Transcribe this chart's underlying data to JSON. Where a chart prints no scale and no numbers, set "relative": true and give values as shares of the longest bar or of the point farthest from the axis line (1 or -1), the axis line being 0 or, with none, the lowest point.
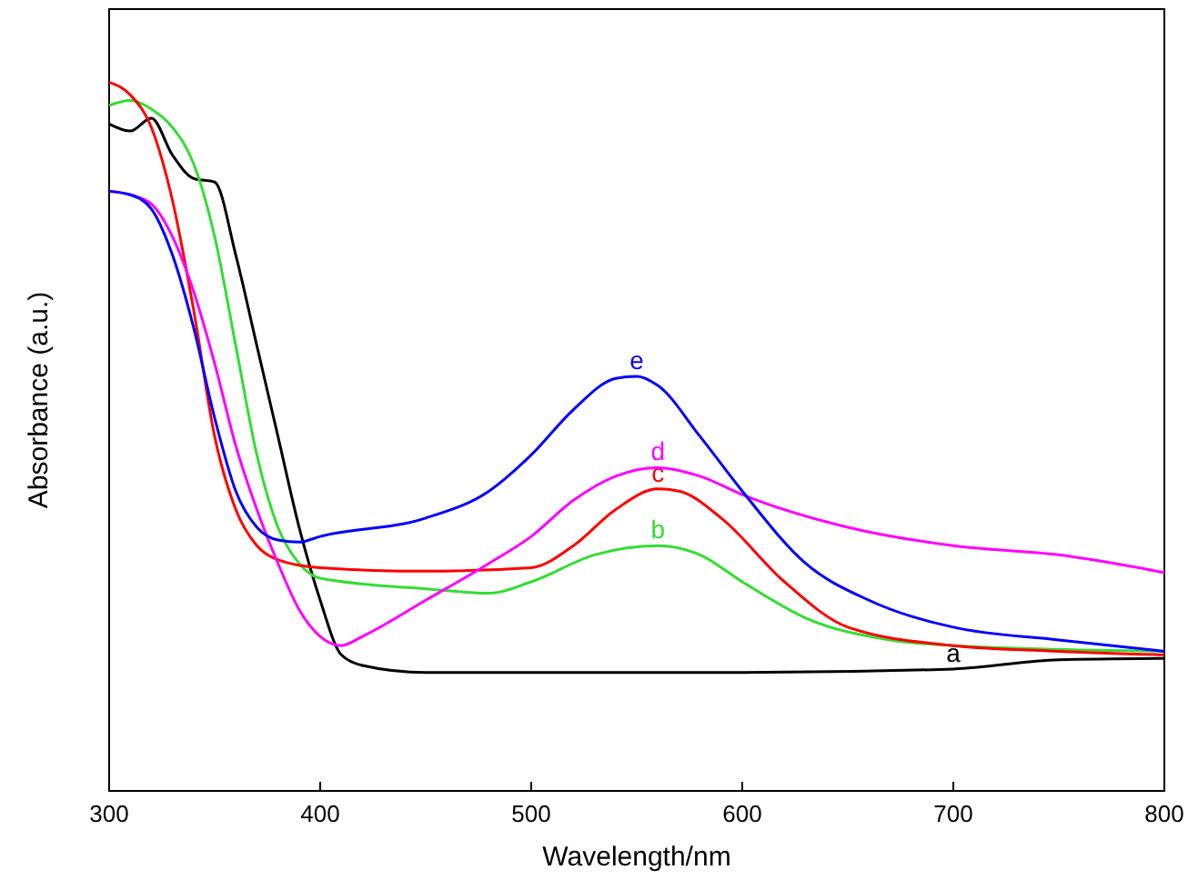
{
  "chart_data": {
    "type": "line",
    "relative": true,
    "xlabel": "Wavelength/nm",
    "ylabel": "Absorbance (a.u.)",
    "xlim": [
      300,
      800
    ],
    "xticks": [
      300,
      400,
      500,
      600,
      700,
      800
    ],
    "grid": false,
    "marker": "none",
    "line_style": "solid",
    "series": [
      {
        "name": "a",
        "color": "#000000",
        "x": [
          300,
          310,
          320,
          330,
          340,
          350,
          360,
          370,
          380,
          390,
          400,
          410,
          420,
          450,
          500,
          600,
          700,
          750,
          800
        ],
        "values": [
          0.941,
          0.931,
          0.949,
          0.897,
          0.864,
          0.859,
          0.756,
          0.628,
          0.5,
          0.372,
          0.269,
          0.192,
          0.177,
          0.167,
          0.167,
          0.167,
          0.172,
          0.185,
          0.187
        ]
      },
      {
        "name": "b",
        "color": "#33dd33",
        "x": [
          300,
          310,
          320,
          330,
          340,
          350,
          360,
          370,
          380,
          390,
          400,
          450,
          480,
          500,
          530,
          560,
          580,
          600,
          630,
          670,
          700,
          800
        ],
        "values": [
          0.967,
          0.974,
          0.962,
          0.936,
          0.885,
          0.782,
          0.628,
          0.474,
          0.372,
          0.321,
          0.3,
          0.285,
          0.279,
          0.295,
          0.333,
          0.346,
          0.333,
          0.295,
          0.244,
          0.213,
          0.205,
          0.197
        ]
      },
      {
        "name": "c",
        "color": "#ff0000",
        "x": [
          300,
          310,
          320,
          330,
          340,
          350,
          360,
          370,
          380,
          400,
          450,
          500,
          520,
          540,
          560,
          570,
          590,
          620,
          650,
          700,
          750,
          800
        ],
        "values": [
          1.0,
          0.982,
          0.936,
          0.833,
          0.679,
          0.5,
          0.397,
          0.346,
          0.326,
          0.315,
          0.31,
          0.315,
          0.346,
          0.397,
          0.426,
          0.423,
          0.385,
          0.295,
          0.231,
          0.205,
          0.197,
          0.192
        ]
      },
      {
        "name": "d",
        "color": "#ff00ff",
        "x": [
          300,
          310,
          320,
          330,
          340,
          350,
          360,
          370,
          380,
          390,
          400,
          410,
          420,
          450,
          480,
          500,
          520,
          540,
          560,
          580,
          600,
          650,
          700,
          750,
          800
        ],
        "values": [
          0.846,
          0.841,
          0.828,
          0.782,
          0.705,
          0.603,
          0.487,
          0.397,
          0.321,
          0.256,
          0.218,
          0.205,
          0.218,
          0.269,
          0.321,
          0.359,
          0.41,
          0.444,
          0.456,
          0.444,
          0.418,
          0.372,
          0.346,
          0.333,
          0.308
        ]
      },
      {
        "name": "e",
        "color": "#0000ff",
        "x": [
          300,
          310,
          320,
          330,
          340,
          350,
          360,
          370,
          380,
          390,
          400,
          450,
          480,
          500,
          520,
          540,
          550,
          560,
          580,
          600,
          630,
          660,
          700,
          750,
          800
        ],
        "values": [
          0.846,
          0.841,
          0.821,
          0.756,
          0.654,
          0.526,
          0.423,
          0.372,
          0.354,
          0.351,
          0.359,
          0.385,
          0.423,
          0.474,
          0.538,
          0.582,
          0.585,
          0.572,
          0.5,
          0.423,
          0.321,
          0.269,
          0.231,
          0.213,
          0.197
        ]
      }
    ]
  }
}
